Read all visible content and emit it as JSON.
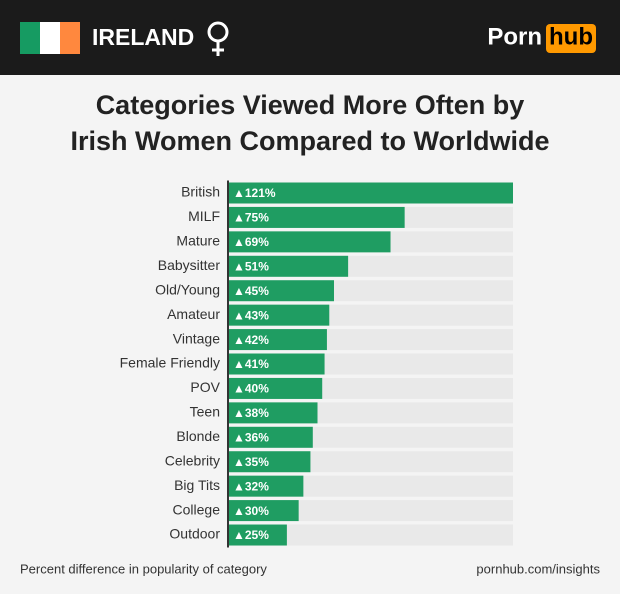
{
  "header": {
    "country": "IRELAND",
    "logo": [
      "Porn",
      "hub"
    ]
  },
  "chart_data": {
    "type": "bar",
    "orientation": "horizontal",
    "title": [
      "Categories Viewed More Often by",
      "Irish Women Compared to Worldwide"
    ],
    "categories": [
      "British",
      "MILF",
      "Mature",
      "Babysitter",
      "Old/Young",
      "Amateur",
      "Vintage",
      "Female Friendly",
      "POV",
      "Teen",
      "Blonde",
      "Celebrity",
      "Big Tits",
      "College",
      "Outdoor"
    ],
    "values": [
      121,
      75,
      69,
      51,
      45,
      43,
      42,
      41,
      40,
      38,
      36,
      35,
      32,
      30,
      25
    ],
    "value_labels": [
      "▲121%",
      "▲75%",
      "▲69%",
      "▲51%",
      "▲45%",
      "▲43%",
      "▲42%",
      "▲41%",
      "▲40%",
      "▲38%",
      "▲36%",
      "▲35%",
      "▲32%",
      "▲30%",
      "▲25%"
    ],
    "color": "#1f9d62"
  },
  "footer": {
    "note": "Percent difference in popularity of category",
    "source": "pornhub.com/insights"
  }
}
